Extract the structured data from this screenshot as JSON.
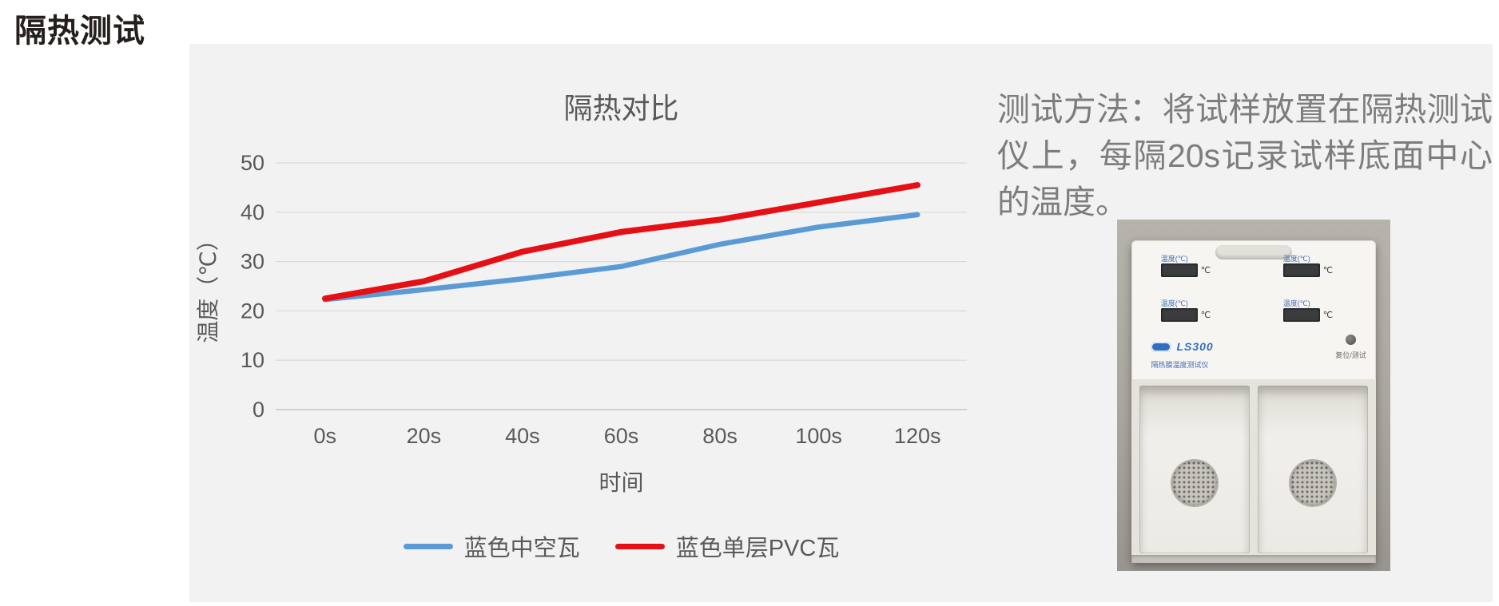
{
  "page": {
    "title": "隔热测试"
  },
  "chart_data": {
    "type": "line",
    "title": "隔热对比",
    "categories": [
      "0s",
      "20s",
      "40s",
      "60s",
      "80s",
      "100s",
      "120s"
    ],
    "series": [
      {
        "name": "蓝色中空瓦",
        "color": "#5b9bd5",
        "values": [
          22.3,
          24.3,
          26.5,
          29,
          33.5,
          37,
          39.5
        ]
      },
      {
        "name": "蓝色单层PVC瓦",
        "color": "#e60f14",
        "values": [
          22.5,
          26,
          32,
          36,
          38.5,
          42,
          45.5
        ]
      }
    ],
    "xlabel": "时间",
    "ylabel": "温度（℃）",
    "ylim": [
      0,
      50
    ],
    "yticks": [
      0,
      10,
      20,
      30,
      40,
      50
    ],
    "grid": true,
    "legend_position": "bottom",
    "gridline_color": "#d9d9d9",
    "axis_text_color": "#595959"
  },
  "method_note": {
    "text": "测试方法：将试样放置在隔热测试仪上，每隔20s记录试样底面中心的温度。"
  },
  "instrument_photo": {
    "display_label": "温度(℃)",
    "display_unit": "℃",
    "brand": "LS300",
    "model_line": "隔热膜温度测试仪",
    "button_label": "复位/测试"
  }
}
